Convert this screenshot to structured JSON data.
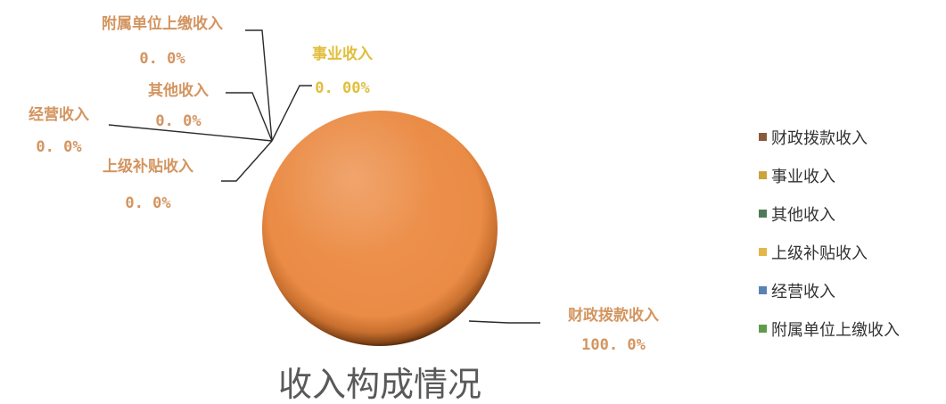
{
  "chart_data": {
    "type": "pie",
    "title": "收入构成情况",
    "legend_position": "right",
    "slices": [
      {
        "name": "财政拨款收入",
        "value": 100.0,
        "label_pct": "100. 0%",
        "color": "#E8904A",
        "label_color": "#D39560"
      },
      {
        "name": "事业收入",
        "value": 0.0,
        "label_pct": "0. 00%",
        "color": "#E7B92E",
        "label_color": "#E1BE3C"
      },
      {
        "name": "其他收入",
        "value": 0.0,
        "label_pct": "0. 0%",
        "color": "#4F8A57",
        "label_color": "#D39560"
      },
      {
        "name": "上级补贴收入",
        "value": 0.0,
        "label_pct": "0. 0%",
        "color": "#E2B64A",
        "label_color": "#D39560"
      },
      {
        "name": "经营收入",
        "value": 0.0,
        "label_pct": "0. 0%",
        "color": "#5B82B4",
        "label_color": "#D39560"
      },
      {
        "name": "附属单位上缴收入",
        "value": 0.0,
        "label_pct": "0. 0%",
        "color": "#5E9C4D",
        "label_color": "#D39560"
      }
    ],
    "legend_marker_colors": [
      "#8B5A3C",
      "#C9A43A",
      "#4F7A57",
      "#E2B64A",
      "#5B82B4",
      "#5E9C4D"
    ]
  }
}
